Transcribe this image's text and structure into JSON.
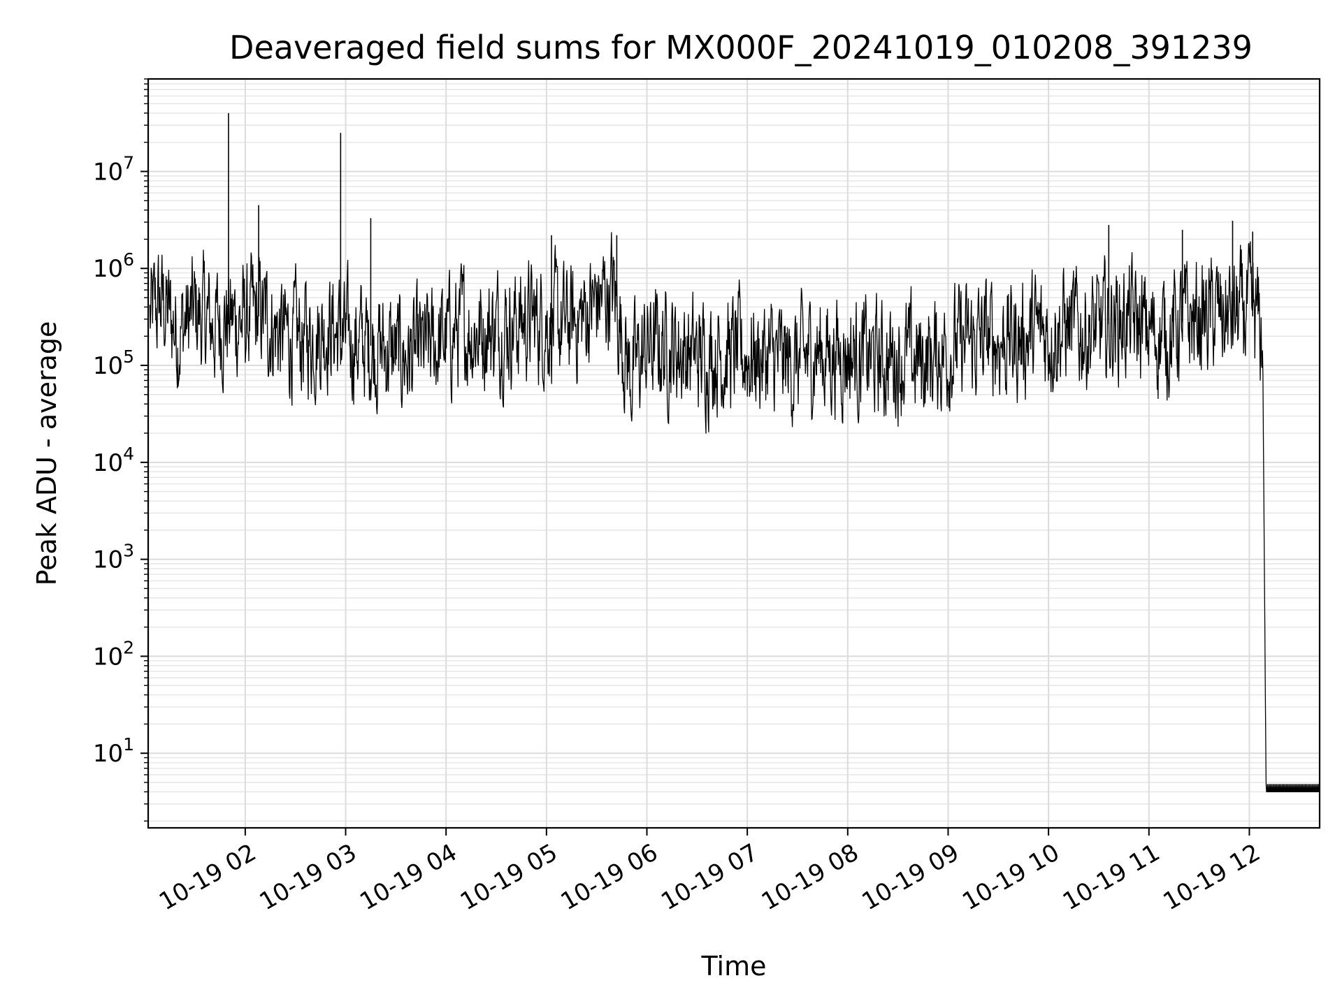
{
  "chart_data": {
    "type": "line",
    "title": "Deaveraged field sums for MX000F_20241019_010208_391239",
    "xlabel": "Time",
    "ylabel": "Peak ADU - average",
    "y_scale": "log",
    "grid": true,
    "grid_minor": true,
    "line_color": "#000000",
    "x_range": [
      "2024-10-19 01:02",
      "2024-10-19 12:42"
    ],
    "ylim": [
      1.7,
      90000000
    ],
    "x_ticks": [
      {
        "time": "2024-10-19 02:00",
        "label": "10-19 02"
      },
      {
        "time": "2024-10-19 03:00",
        "label": "10-19 03"
      },
      {
        "time": "2024-10-19 04:00",
        "label": "10-19 04"
      },
      {
        "time": "2024-10-19 05:00",
        "label": "10-19 05"
      },
      {
        "time": "2024-10-19 06:00",
        "label": "10-19 06"
      },
      {
        "time": "2024-10-19 07:00",
        "label": "10-19 07"
      },
      {
        "time": "2024-10-19 08:00",
        "label": "10-19 08"
      },
      {
        "time": "2024-10-19 09:00",
        "label": "10-19 09"
      },
      {
        "time": "2024-10-19 10:00",
        "label": "10-19 10"
      },
      {
        "time": "2024-10-19 11:00",
        "label": "10-19 11"
      },
      {
        "time": "2024-10-19 12:00",
        "label": "10-19 12"
      }
    ],
    "y_ticks": [
      {
        "value": 10,
        "base": "10",
        "exp": "1"
      },
      {
        "value": 100,
        "base": "10",
        "exp": "2"
      },
      {
        "value": 1000,
        "base": "10",
        "exp": "3"
      },
      {
        "value": 10000,
        "base": "10",
        "exp": "4"
      },
      {
        "value": 100000,
        "base": "10",
        "exp": "5"
      },
      {
        "value": 1000000,
        "base": "10",
        "exp": "6"
      },
      {
        "value": 10000000,
        "base": "10",
        "exp": "7"
      }
    ],
    "series": [
      {
        "x": [
          "2024-10-19 01:03",
          "2024-10-19 01:10",
          "2024-10-19 01:20",
          "2024-10-19 01:30",
          "2024-10-19 01:40",
          "2024-10-19 01:50",
          "2024-10-19 02:00",
          "2024-10-19 02:10",
          "2024-10-19 02:20",
          "2024-10-19 02:30",
          "2024-10-19 02:40",
          "2024-10-19 02:50",
          "2024-10-19 03:00",
          "2024-10-19 03:10",
          "2024-10-19 03:20",
          "2024-10-19 03:30",
          "2024-10-19 03:40",
          "2024-10-19 03:50",
          "2024-10-19 04:00",
          "2024-10-19 04:10",
          "2024-10-19 04:20",
          "2024-10-19 04:30",
          "2024-10-19 04:40",
          "2024-10-19 04:50",
          "2024-10-19 05:00",
          "2024-10-19 05:10",
          "2024-10-19 05:20",
          "2024-10-19 05:30",
          "2024-10-19 05:40",
          "2024-10-19 05:50",
          "2024-10-19 06:00",
          "2024-10-19 06:10",
          "2024-10-19 06:20",
          "2024-10-19 06:30",
          "2024-10-19 06:40",
          "2024-10-19 06:50",
          "2024-10-19 07:00",
          "2024-10-19 07:10",
          "2024-10-19 07:20",
          "2024-10-19 07:30",
          "2024-10-19 07:40",
          "2024-10-19 07:50",
          "2024-10-19 08:00",
          "2024-10-19 08:10",
          "2024-10-19 08:20",
          "2024-10-19 08:30",
          "2024-10-19 08:40",
          "2024-10-19 08:50",
          "2024-10-19 09:00",
          "2024-10-19 09:10",
          "2024-10-19 09:20",
          "2024-10-19 09:30",
          "2024-10-19 09:40",
          "2024-10-19 09:50",
          "2024-10-19 10:00",
          "2024-10-19 10:10",
          "2024-10-19 10:20",
          "2024-10-19 10:30",
          "2024-10-19 10:40",
          "2024-10-19 10:50",
          "2024-10-19 11:00",
          "2024-10-19 11:10",
          "2024-10-19 11:20",
          "2024-10-19 11:30",
          "2024-10-19 11:40",
          "2024-10-19 11:50",
          "2024-10-19 12:00",
          "2024-10-19 12:05",
          "2024-10-19 12:08",
          "2024-10-19 12:10",
          "2024-10-19 12:20",
          "2024-10-19 12:30",
          "2024-10-19 12:42"
        ],
        "y": [
          300000,
          450000,
          220000,
          350000,
          260000,
          300000,
          280000,
          330000,
          220000,
          180000,
          200000,
          260000,
          180000,
          170000,
          150000,
          130000,
          120000,
          150000,
          190000,
          240000,
          230000,
          250000,
          270000,
          300000,
          280000,
          250000,
          300000,
          450000,
          600000,
          80000,
          150000,
          160000,
          150000,
          120000,
          140000,
          130000,
          130000,
          120000,
          110000,
          100000,
          140000,
          130000,
          140000,
          120000,
          110000,
          120000,
          110000,
          120000,
          150000,
          160000,
          180000,
          190000,
          180000,
          210000,
          220000,
          250000,
          230000,
          220000,
          300000,
          280000,
          220000,
          200000,
          280000,
          300000,
          330000,
          310000,
          350000,
          280000,
          150000,
          4,
          4,
          4,
          4
        ]
      }
    ],
    "spikes": [
      {
        "time": "2024-10-19 01:50",
        "value": 40000000
      },
      {
        "time": "2024-10-19 02:08",
        "value": 4500000
      },
      {
        "time": "2024-10-19 02:57",
        "value": 25000000
      },
      {
        "time": "2024-10-19 03:15",
        "value": 3300000
      },
      {
        "time": "2024-10-19 05:03",
        "value": 2200000
      },
      {
        "time": "2024-10-19 05:42",
        "value": 2200000
      },
      {
        "time": "2024-10-19 10:36",
        "value": 2800000
      },
      {
        "time": "2024-10-19 11:20",
        "value": 2500000
      },
      {
        "time": "2024-10-19 11:50",
        "value": 3100000
      },
      {
        "time": "2024-10-19 12:02",
        "value": 2400000
      }
    ]
  }
}
